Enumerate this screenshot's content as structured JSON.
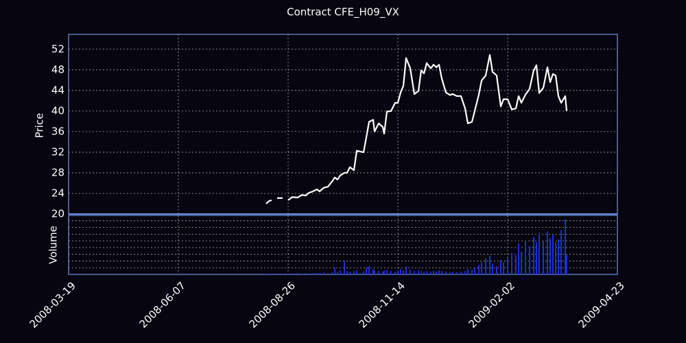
{
  "chart_data": {
    "type": "line",
    "title": "Contract CFE_H09_VX",
    "ylabel": "Price",
    "color": "#ffffff",
    "grid": true,
    "xlim": [
      "2008-03-19",
      "2009-04-23"
    ],
    "xticks": [
      "2008-03-19",
      "2008-06-07",
      "2008-08-26",
      "2008-11-14",
      "2009-02-02",
      "2009-04-23"
    ],
    "ylim": [
      20,
      54.9
    ],
    "yticks": [
      20,
      24,
      28,
      32,
      36,
      40,
      44,
      48,
      52
    ],
    "x": [
      "2008-08-10",
      "2008-08-12",
      "2008-08-14",
      "2008-08-16",
      "2008-08-18",
      "2008-08-22",
      "2008-08-24",
      "2008-08-26",
      "2008-08-29",
      "2008-09-02",
      "2008-09-05",
      "2008-09-08",
      "2008-09-10",
      "2008-09-13",
      "2008-09-16",
      "2008-09-18",
      "2008-09-21",
      "2008-09-24",
      "2008-09-27",
      "2008-09-29",
      "2008-10-01",
      "2008-10-03",
      "2008-10-06",
      "2008-10-08",
      "2008-10-10",
      "2008-10-13",
      "2008-10-15",
      "2008-10-20",
      "2008-10-22",
      "2008-10-24",
      "2008-10-27",
      "2008-10-28",
      "2008-10-31",
      "2008-11-03",
      "2008-11-04",
      "2008-11-06",
      "2008-11-09",
      "2008-11-12",
      "2008-11-14",
      "2008-11-16",
      "2008-11-18",
      "2008-11-20",
      "2008-11-23",
      "2008-11-26",
      "2008-11-29",
      "2008-12-01",
      "2008-12-03",
      "2008-12-05",
      "2008-12-08",
      "2008-12-10",
      "2008-12-12",
      "2008-12-14",
      "2008-12-16",
      "2008-12-19",
      "2008-12-22",
      "2008-12-24",
      "2008-12-27",
      "2008-12-30",
      "2009-01-02",
      "2009-01-04",
      "2009-01-07",
      "2009-01-09",
      "2009-01-12",
      "2009-01-14",
      "2009-01-17",
      "2009-01-20",
      "2009-01-22",
      "2009-01-25",
      "2009-01-28",
      "2009-01-30",
      "2009-02-02",
      "2009-02-05",
      "2009-02-08",
      "2009-02-10",
      "2009-02-12",
      "2009-02-15",
      "2009-02-18",
      "2009-02-21",
      "2009-02-23",
      "2009-02-25",
      "2009-02-28",
      "2009-03-03",
      "2009-03-05",
      "2009-03-07",
      "2009-03-09",
      "2009-03-11",
      "2009-03-13",
      "2009-03-16",
      "2009-03-17"
    ],
    "values": [
      22.0,
      22.5,
      22.7,
      null,
      23.1,
      23.1,
      null,
      22.7,
      23.3,
      23.2,
      23.7,
      23.6,
      24.1,
      24.4,
      24.8,
      24.4,
      25.1,
      25.3,
      26.3,
      27.1,
      26.7,
      27.5,
      28.0,
      28.0,
      29.1,
      28.5,
      32.3,
      32.0,
      34.9,
      37.9,
      38.3,
      36.0,
      37.6,
      36.9,
      35.6,
      39.9,
      40.0,
      41.6,
      41.6,
      43.6,
      44.9,
      50.3,
      48.3,
      43.3,
      43.9,
      47.9,
      47.3,
      49.3,
      48.3,
      49.0,
      48.5,
      49.0,
      46.3,
      43.6,
      43.1,
      43.3,
      42.9,
      42.9,
      40.5,
      37.6,
      37.9,
      40.0,
      43.2,
      45.9,
      46.9,
      50.9,
      47.6,
      46.9,
      40.9,
      42.3,
      42.3,
      40.3,
      40.5,
      42.9,
      41.6,
      43.2,
      44.3,
      47.9,
      48.9,
      43.5,
      44.5,
      48.5,
      45.6,
      47.2,
      46.9,
      42.9,
      41.6,
      42.9,
      40.0
    ],
    "volume": {
      "type": "bar",
      "ylabel": "Volume",
      "color": "#1f2fd0",
      "ylim": [
        0,
        8.8
      ],
      "yticks": [
        1,
        2,
        3,
        4,
        5,
        6,
        7,
        8
      ],
      "values": [
        0.1,
        0.1,
        0.1,
        0,
        0.1,
        0.1,
        0,
        0.1,
        0.1,
        0.2,
        0.1,
        0.2,
        0.1,
        0.2,
        0.2,
        0.2,
        0.3,
        0.2,
        0.3,
        1.0,
        0.4,
        0.6,
        2.0,
        0.5,
        0.4,
        0.5,
        0.6,
        0.5,
        1.0,
        1.2,
        0.8,
        0.6,
        0.5,
        0.4,
        0.6,
        0.7,
        0.5,
        0.4,
        0.6,
        0.8,
        0.6,
        1.2,
        0.7,
        0.5,
        0.6,
        0.5,
        0.4,
        0.5,
        0.4,
        0.5,
        0.4,
        0.6,
        0.5,
        0.4,
        0.3,
        0.4,
        0.3,
        0.4,
        0.5,
        0.8,
        0.7,
        1.0,
        1.4,
        1.8,
        2.4,
        2.8,
        1.6,
        1.2,
        2.2,
        1.8,
        2.6,
        3.2,
        2.8,
        4.6,
        3.4,
        5.0,
        4.2,
        5.6,
        4.8,
        6.2,
        5.0,
        6.4,
        5.4,
        6.0,
        4.8,
        5.2,
        6.6,
        8.2,
        3.0
      ]
    }
  }
}
